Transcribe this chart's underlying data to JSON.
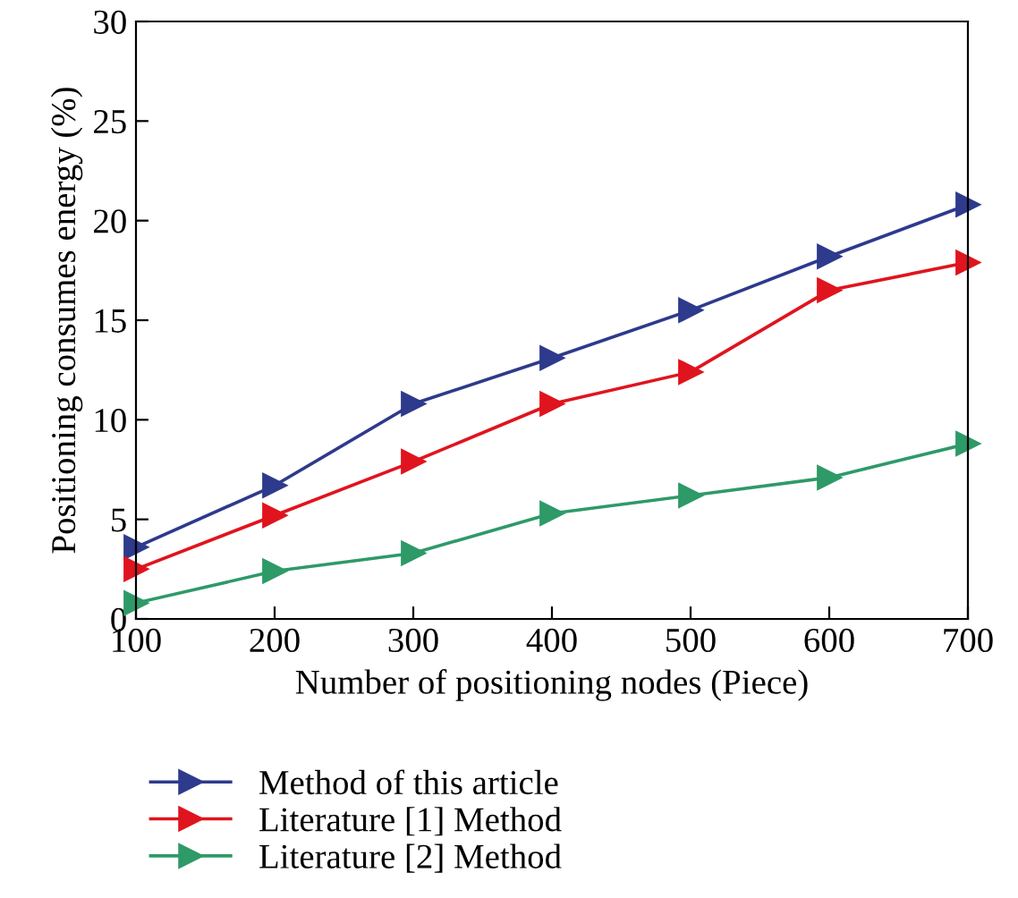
{
  "chart_data": {
    "type": "line",
    "xlabel": "Number of positioning nodes (Piece)",
    "ylabel": "Positioning consumes energy (%)",
    "x": [
      100,
      200,
      300,
      400,
      500,
      600,
      700
    ],
    "series": [
      {
        "name": "Method of this article",
        "color": "#2e3a8c",
        "values": [
          3.6,
          6.7,
          10.8,
          13.1,
          15.5,
          18.2,
          20.8
        ]
      },
      {
        "name": "Literature [1] Method",
        "color": "#e0141e",
        "values": [
          2.5,
          5.2,
          7.9,
          10.8,
          12.4,
          16.5,
          17.9
        ]
      },
      {
        "name": "Literature [2] Method",
        "color": "#2e9a68",
        "values": [
          0.8,
          2.4,
          3.3,
          5.3,
          6.2,
          7.1,
          8.8
        ]
      }
    ],
    "xlim": [
      100,
      700
    ],
    "xticks": [
      100,
      200,
      300,
      400,
      500,
      600,
      700
    ],
    "ylim": [
      0,
      30
    ],
    "yticks": [
      0,
      5,
      10,
      15,
      20,
      25,
      30
    ],
    "grid": false,
    "legend": "bottom",
    "marker": "triangle",
    "line_style": "solid"
  }
}
